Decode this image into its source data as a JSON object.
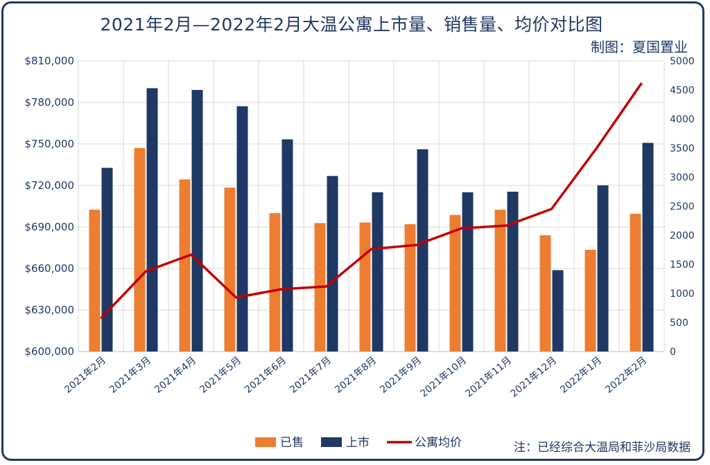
{
  "title": "2021年2月—2022年2月大温公寓上市量、销售量、均价对比图",
  "credit": "制图：夏国置业",
  "note": "注：已经综合大温局和菲沙局数据",
  "colors": {
    "sold": "#ed7d31",
    "listed": "#1f3864",
    "price": "#c00000",
    "text": "#1f3864"
  },
  "chart_data": {
    "type": "bar",
    "categories": [
      "2021年2月",
      "2021年3月",
      "2021年4月",
      "2021年5月",
      "2021年6月",
      "2021年7月",
      "2021年8月",
      "2021年9月",
      "2021年10月",
      "2021年11月",
      "2021年12月",
      "2022年1月",
      "2022年2月"
    ],
    "y_left": {
      "ylim": [
        600000,
        810000
      ],
      "ticks": [
        "$600,000",
        "$630,000",
        "$660,000",
        "$690,000",
        "$720,000",
        "$750,000",
        "$780,000",
        "$810,000"
      ]
    },
    "y_right": {
      "ylim": [
        0,
        5000
      ],
      "ticks": [
        "0",
        "500",
        "1000",
        "1500",
        "2000",
        "2500",
        "3000",
        "3500",
        "4000",
        "4500",
        "5000"
      ]
    },
    "series": [
      {
        "name": "已售",
        "kind": "bar",
        "axis": "right",
        "values": [
          2440,
          3500,
          2960,
          2820,
          2380,
          2210,
          2220,
          2190,
          2350,
          2440,
          2000,
          1750,
          2370
        ]
      },
      {
        "name": "上市",
        "kind": "bar",
        "axis": "right",
        "values": [
          3160,
          4530,
          4500,
          4220,
          3650,
          3020,
          2740,
          3480,
          2740,
          2750,
          1400,
          2860,
          3590
        ]
      },
      {
        "name": "公寓均价",
        "kind": "line",
        "axis": "left",
        "values": [
          624000,
          658000,
          670000,
          639000,
          645000,
          647000,
          674000,
          677000,
          689000,
          691000,
          703000,
          747000,
          794000
        ]
      }
    ],
    "grid": true,
    "legend_position": "bottom"
  }
}
